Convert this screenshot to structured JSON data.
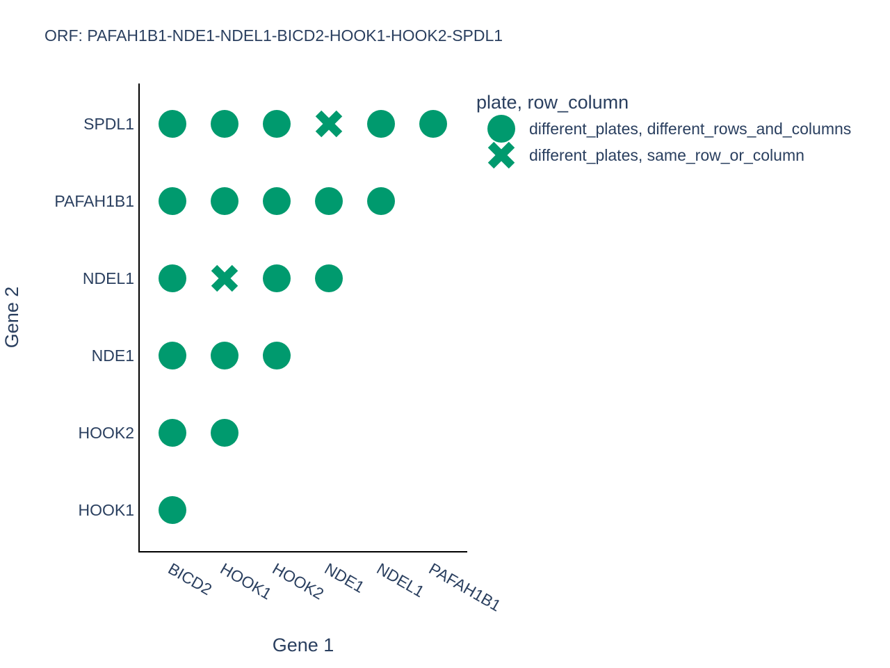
{
  "chart_data": {
    "type": "scatter",
    "title": "ORF: PAFAH1B1-NDE1-NDEL1-BICD2-HOOK1-HOOK2-SPDL1",
    "xlabel": "Gene 1",
    "ylabel": "Gene 2",
    "x_categories": [
      "BICD2",
      "HOOK1",
      "HOOK2",
      "NDE1",
      "NDEL1",
      "PAFAH1B1"
    ],
    "y_categories": [
      "HOOK1",
      "HOOK2",
      "NDE1",
      "NDEL1",
      "PAFAH1B1",
      "SPDL1"
    ],
    "marker_color": "#009a6e",
    "grid": false,
    "legend": {
      "title": "plate, row_column",
      "position": "right"
    },
    "series": [
      {
        "name": "different_plates, different_rows_and_columns",
        "symbol": "circle",
        "points": [
          {
            "x": "BICD2",
            "y": "HOOK1"
          },
          {
            "x": "BICD2",
            "y": "HOOK2"
          },
          {
            "x": "HOOK1",
            "y": "HOOK2"
          },
          {
            "x": "BICD2",
            "y": "NDE1"
          },
          {
            "x": "HOOK1",
            "y": "NDE1"
          },
          {
            "x": "HOOK2",
            "y": "NDE1"
          },
          {
            "x": "BICD2",
            "y": "NDEL1"
          },
          {
            "x": "HOOK2",
            "y": "NDEL1"
          },
          {
            "x": "NDE1",
            "y": "NDEL1"
          },
          {
            "x": "BICD2",
            "y": "PAFAH1B1"
          },
          {
            "x": "HOOK1",
            "y": "PAFAH1B1"
          },
          {
            "x": "HOOK2",
            "y": "PAFAH1B1"
          },
          {
            "x": "NDE1",
            "y": "PAFAH1B1"
          },
          {
            "x": "NDEL1",
            "y": "PAFAH1B1"
          },
          {
            "x": "BICD2",
            "y": "SPDL1"
          },
          {
            "x": "HOOK1",
            "y": "SPDL1"
          },
          {
            "x": "HOOK2",
            "y": "SPDL1"
          },
          {
            "x": "NDEL1",
            "y": "SPDL1"
          },
          {
            "x": "PAFAH1B1",
            "y": "SPDL1"
          }
        ]
      },
      {
        "name": "different_plates, same_row_or_column",
        "symbol": "x",
        "points": [
          {
            "x": "HOOK1",
            "y": "NDEL1"
          },
          {
            "x": "NDE1",
            "y": "SPDL1"
          }
        ]
      }
    ]
  }
}
